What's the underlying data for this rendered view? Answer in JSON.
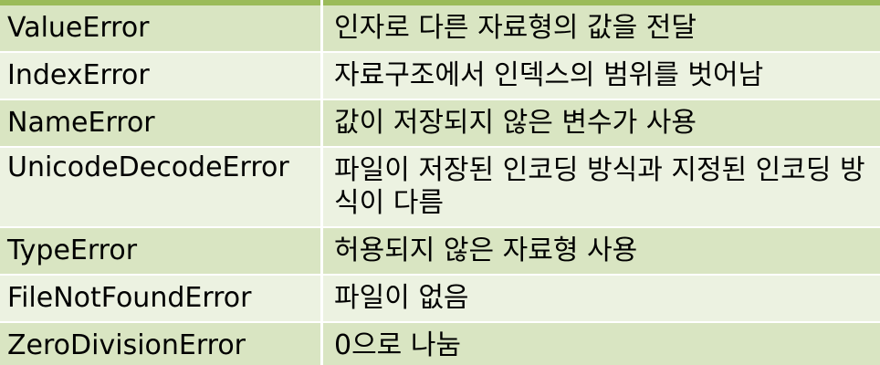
{
  "table": {
    "rows": [
      {
        "error": "ValueError",
        "description": "인자로 다른 자료형의 값을 전달"
      },
      {
        "error": "IndexError",
        "description": "자료구조에서 인덱스의 범위를 벗어남"
      },
      {
        "error": "NameError",
        "description": "값이 저장되지 않은 변수가 사용"
      },
      {
        "error": "UnicodeDecodeError",
        "description": "파일이 저장된 인코딩 방식과 지정된 인코딩 방식이 다름"
      },
      {
        "error": "TypeError",
        "description": "허용되지 않은 자료형 사용"
      },
      {
        "error": "FileNotFoundError",
        "description": "파일이 없음"
      },
      {
        "error": "ZeroDivisionError",
        "description": "0으로 나눔"
      }
    ]
  },
  "colors": {
    "header_accent": "#9bbb59",
    "row_odd": "#d9e5c2",
    "row_even": "#ecf2e1"
  }
}
